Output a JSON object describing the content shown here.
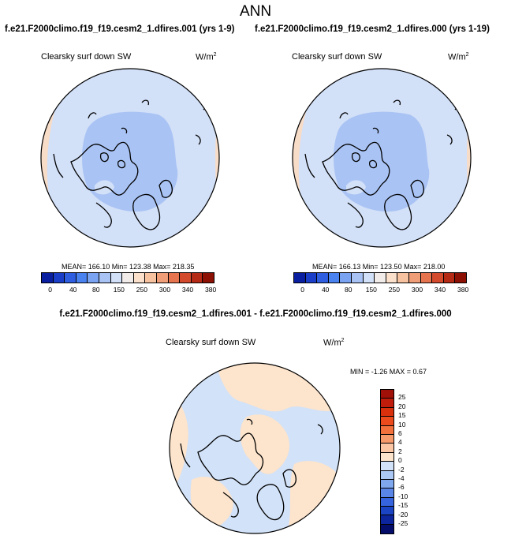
{
  "title": "ANN",
  "panel_left": {
    "case": "f.e21.F2000climo.f19_f19.cesm2_1.dfires.001 (yrs 1-9)",
    "variable": "Clearsky surf down SW",
    "units": "W/m",
    "units_exp": "2",
    "stats": "MEAN= 166.10  Min= 123.38  Max= 218.35"
  },
  "panel_right": {
    "case": "f.e21.F2000climo.f19_f19.cesm2_1.dfires.000 (yrs 1-19)",
    "variable": "Clearsky surf down SW",
    "units": "W/m",
    "units_exp": "2",
    "stats": "MEAN= 166.13  Min= 123.50  Max= 218.00"
  },
  "colorbar_abs": {
    "colors": [
      "#0a1fa0",
      "#1b3ec8",
      "#2f5fe0",
      "#4a82f0",
      "#7aa4f2",
      "#a9c3f4",
      "#d2e0f8",
      "#f1ecea",
      "#fbe0cc",
      "#f6c2a0",
      "#f09e78",
      "#e6744e",
      "#d44a2c",
      "#b52a14",
      "#8c1004"
    ],
    "ticks": [
      "0",
      "40",
      "80",
      "150",
      "250",
      "300",
      "340",
      "380"
    ]
  },
  "panel_diff": {
    "title": "f.e21.F2000climo.f19_f19.cesm2_1.dfires.001 - f.e21.F2000climo.f19_f19.cesm2_1.dfires.000",
    "variable": "Clearsky surf down SW",
    "units": "W/m",
    "units_exp": "2",
    "stats": "MIN =  -1.26 MAX =   0.67"
  },
  "colorbar_diff": {
    "colors": [
      "#a01008",
      "#c01c0c",
      "#d8300c",
      "#ea4a1c",
      "#f2703c",
      "#f69a6c",
      "#fbc6a4",
      "#fde4cc",
      "#d2e2f8",
      "#acc8f4",
      "#80a8ee",
      "#5a86e8",
      "#3664de",
      "#1a44c4",
      "#0c249c",
      "#040e6a"
    ],
    "ticks": [
      "25",
      "20",
      "15",
      "10",
      "6",
      "4",
      "2",
      "0",
      "-2",
      "-4",
      "-6",
      "-10",
      "-15",
      "-20",
      "-25"
    ]
  }
}
